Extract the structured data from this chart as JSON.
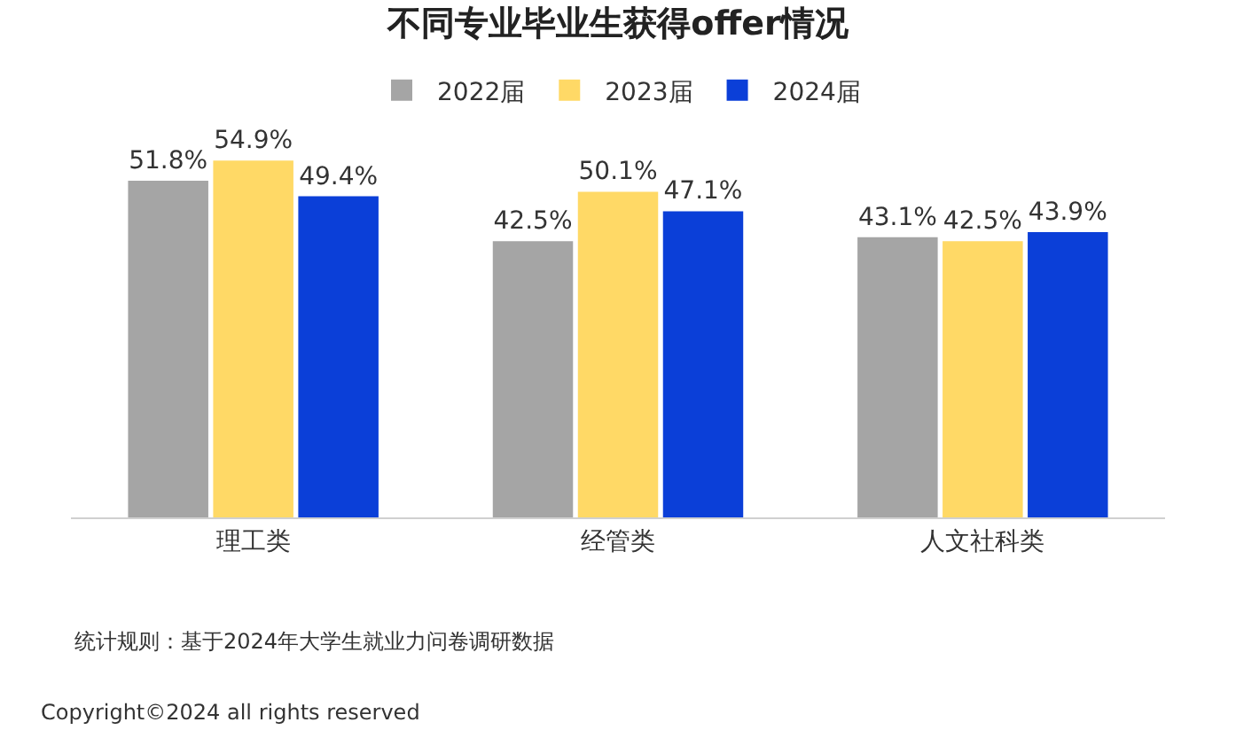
{
  "chart_data": {
    "type": "bar",
    "title": "不同专业毕业生获得offer情况",
    "categories": [
      "理工类",
      "经管类",
      "人文社科类"
    ],
    "series": [
      {
        "name": "2022届",
        "color": "#a5a5a5",
        "values": [
          51.8,
          42.5,
          43.1
        ],
        "value_labels": [
          "51.8%",
          "42.5%",
          "43.1%"
        ]
      },
      {
        "name": "2023届",
        "color": "#ffd966",
        "values": [
          54.9,
          50.1,
          42.5
        ],
        "value_labels": [
          "54.9%",
          "50.1%",
          "42.5%"
        ]
      },
      {
        "name": "2024届",
        "color": "#0b3fd8",
        "values": [
          49.4,
          47.1,
          43.9
        ],
        "value_labels": [
          "49.4%",
          "47.1%",
          "43.9%"
        ]
      }
    ],
    "legend": "top",
    "annotations": [
      "统计规则：基于2024年大学生就业力问卷调研数据",
      "Copyright©2024 all rights reserved"
    ]
  }
}
